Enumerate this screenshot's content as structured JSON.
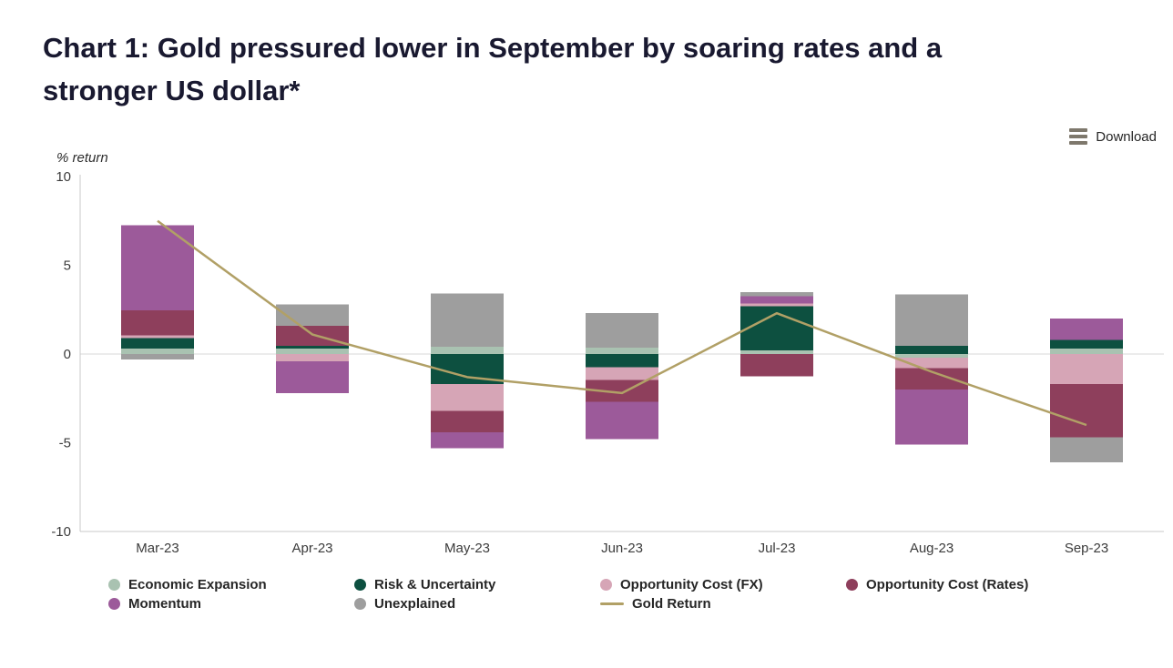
{
  "header": {
    "title_lines": [
      "Chart 1: Gold pressured lower in September by soaring rates and a",
      "stronger US dollar*"
    ],
    "download_label": "Download"
  },
  "chart_data": {
    "type": "bar",
    "stacked": true,
    "title": "Chart 1: Gold pressured lower in September by soaring rates and a stronger US dollar*",
    "xlabel": "",
    "ylabel": "% return",
    "ylim": [
      -10,
      10
    ],
    "yticks": [
      10,
      5,
      0,
      -5,
      -10
    ],
    "grid": "zero-line-only",
    "legend_position": "bottom",
    "axis_color": "#c9c9c9",
    "zero_line_color": "#d9d9d9",
    "categories": [
      "Mar-23",
      "Apr-23",
      "May-23",
      "Jun-23",
      "Jul-23",
      "Aug-23",
      "Sep-23"
    ],
    "series": [
      {
        "name": "Economic Expansion",
        "type": "bar",
        "color": "#a9c2b1",
        "values": [
          0.3,
          0.3,
          0.4,
          0.35,
          0.2,
          -0.2,
          0.3
        ]
      },
      {
        "name": "Risk & Uncertainty",
        "type": "bar",
        "color": "#0d5040",
        "values": [
          0.6,
          0.15,
          -1.7,
          -0.75,
          2.5,
          0.45,
          0.5
        ]
      },
      {
        "name": "Opportunity Cost (FX)",
        "type": "bar",
        "color": "#d6a5b6",
        "values": [
          0.15,
          -0.4,
          -1.5,
          -0.7,
          0.15,
          -0.6,
          -1.7
        ]
      },
      {
        "name": "Opportunity Cost (Rates)",
        "type": "bar",
        "color": "#8e3f5c",
        "values": [
          1.4,
          1.15,
          -1.2,
          -1.25,
          -1.25,
          -1.2,
          -3
        ]
      },
      {
        "name": "Momentum",
        "type": "bar",
        "color": "#9c5a9a",
        "values": [
          4.8,
          -1.8,
          -0.9,
          -2.1,
          0.4,
          -3.1,
          1.2
        ]
      },
      {
        "name": "Unexplained",
        "type": "bar",
        "color": "#9e9e9e",
        "values": [
          -0.3,
          1.2,
          3,
          1.95,
          0.25,
          2.9,
          -1.4
        ]
      },
      {
        "name": "Gold Return",
        "type": "line",
        "color": "#b1a066",
        "values": [
          7.5,
          1.1,
          -1.3,
          -2.2,
          2.3,
          -1,
          -4
        ]
      }
    ]
  }
}
